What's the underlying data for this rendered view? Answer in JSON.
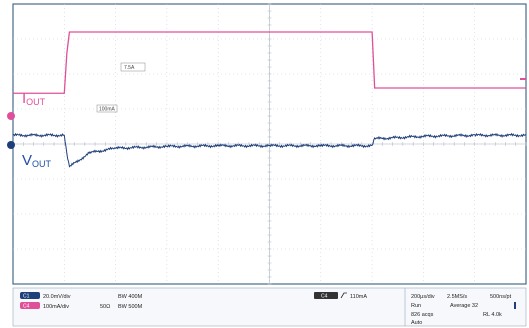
{
  "chart_data": {
    "type": "line",
    "title": "",
    "xlabel": "",
    "ylabel": "",
    "grid": true,
    "x_divisions": 10,
    "y_divisions": 8,
    "x": [
      0,
      1.0,
      1.05,
      1.1,
      1.5,
      2.0,
      3.0,
      4.0,
      5.0,
      6.0,
      7.0,
      7.05,
      8.0,
      9.0,
      10.0
    ],
    "series": [
      {
        "name": "IOUT",
        "color": "#e0509a",
        "values": [
          5.45,
          5.45,
          6.6,
          7.2,
          7.2,
          7.2,
          7.2,
          7.2,
          7.2,
          7.2,
          7.2,
          5.6,
          5.6,
          5.6,
          5.6
        ]
      },
      {
        "name": "VOUT",
        "color": "#1f3f7a",
        "values": [
          4.25,
          4.25,
          3.7,
          3.35,
          3.75,
          3.88,
          3.93,
          3.95,
          3.95,
          3.95,
          3.95,
          4.15,
          4.22,
          4.25,
          4.25
        ]
      }
    ],
    "annotations": {
      "marker_low": "100mA",
      "marker_high": "7.5A"
    },
    "status": {
      "ch1_scale": "20.0mV/div",
      "ch1_bw": "BW 400M",
      "ch4_scale": "100mA/div",
      "ch4_coupling": "50Ω",
      "ch4_bw": "BW 500M",
      "trigger_level": "110mA",
      "timebase": "200μs/div",
      "sample_rate": "2.5MS/s",
      "record": "500ns/pt",
      "mode": "Run",
      "acq": "Average 32",
      "acq_count": "826 acqs",
      "rl": "RL 4.0k",
      "trigger_mode": "Auto"
    }
  },
  "labels": {
    "iout_main": "I",
    "iout_sub": "OUT",
    "vout_main": "V",
    "vout_sub": "OUT"
  },
  "channel_badges": {
    "ch1": "C1",
    "ch4": "C4",
    "trigger": "C4"
  }
}
